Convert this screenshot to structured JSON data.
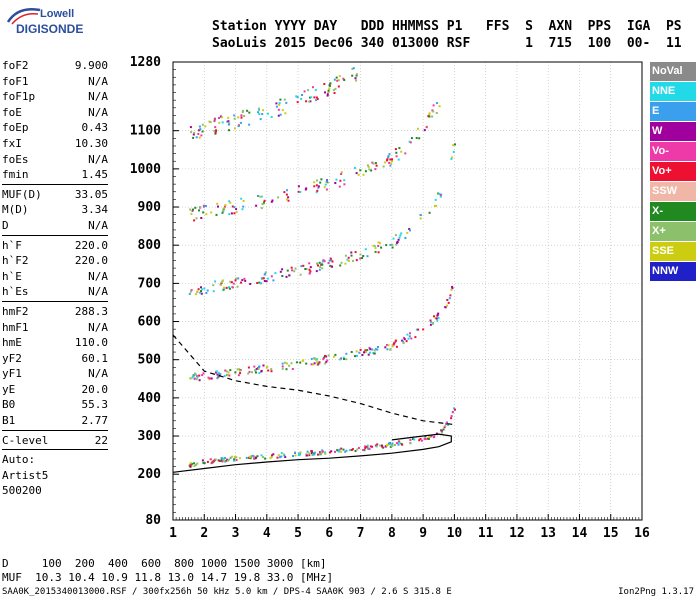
{
  "logo": {
    "line1": "Lowell",
    "line2": "DIGISONDE"
  },
  "header": {
    "line1": "Station YYYY DAY   DDD HHMMSS P1   FFS  S  AXN  PPS  IGA  PS",
    "line2": "SaoLuis 2015 Dec06 340 013000 RSF       1  715  100  00-  11"
  },
  "params_group1": [
    {
      "k": "foF2",
      "v": "9.900"
    },
    {
      "k": "foF1",
      "v": "N/A"
    },
    {
      "k": "foF1p",
      "v": "N/A"
    },
    {
      "k": "foE",
      "v": "N/A"
    },
    {
      "k": "foEp",
      "v": "0.43"
    },
    {
      "k": "fxI",
      "v": "10.30"
    },
    {
      "k": "foEs",
      "v": "N/A"
    },
    {
      "k": "fmin",
      "v": "1.45"
    }
  ],
  "params_group2": [
    {
      "k": "MUF(D)",
      "v": "33.05"
    },
    {
      "k": "M(D)",
      "v": "3.34"
    },
    {
      "k": "D",
      "v": "N/A"
    }
  ],
  "params_group3": [
    {
      "k": "h`F",
      "v": "220.0"
    },
    {
      "k": "h`F2",
      "v": "220.0"
    },
    {
      "k": "h`E",
      "v": "N/A"
    },
    {
      "k": "h`Es",
      "v": "N/A"
    }
  ],
  "params_group4": [
    {
      "k": "hmF2",
      "v": "288.3"
    },
    {
      "k": "hmF1",
      "v": "N/A"
    },
    {
      "k": "hmE",
      "v": "110.0"
    },
    {
      "k": "yF2",
      "v": "60.1"
    },
    {
      "k": "yF1",
      "v": "N/A"
    },
    {
      "k": "yE",
      "v": "20.0"
    },
    {
      "k": "B0",
      "v": "55.3"
    },
    {
      "k": "B1",
      "v": "2.77"
    }
  ],
  "params_group5": [
    {
      "k": "C-level",
      "v": "22"
    }
  ],
  "params_group6": [
    {
      "k": "Auto:",
      "v": ""
    },
    {
      "k": "Artist5",
      "v": ""
    },
    {
      "k": "500200",
      "v": ""
    }
  ],
  "legend": [
    {
      "label": "NoVal",
      "color": "#8a8a8a"
    },
    {
      "label": "NNE",
      "color": "#22d9e8"
    },
    {
      "label": "E",
      "color": "#3aa0ee"
    },
    {
      "label": "W",
      "color": "#a0009e"
    },
    {
      "label": "Vo-",
      "color": "#ee3aa8"
    },
    {
      "label": "Vo+",
      "color": "#ee1030"
    },
    {
      "label": "SSW",
      "color": "#f0b6a8"
    },
    {
      "label": "X-",
      "color": "#208a20"
    },
    {
      "label": "X+",
      "color": "#8cc06a"
    },
    {
      "label": "SSE",
      "color": "#cccc10"
    },
    {
      "label": "NNW",
      "color": "#2020c8"
    }
  ],
  "footer": {
    "line1": "D     100  200  400  600  800 1000 1500 3000 [km]",
    "line2": "MUF  10.3 10.4 10.9 11.8 13.0 14.7 19.8 33.0 [MHz]"
  },
  "bottom_line": "SAA0K_2015340013000.RSF / 300fx256h 50 kHz 5.0 km / DPS-4 SAA0K 903 / 2.6 S 315.8 E",
  "version": "Ion2Png 1.3.17",
  "chart_data": {
    "type": "scatter",
    "title": "",
    "xlabel": "",
    "ylabel": "",
    "xlim": [
      1,
      16
    ],
    "ylim": [
      80,
      1280
    ],
    "x_ticks": [
      "1",
      "2",
      "3",
      "4",
      "5",
      "6",
      "7",
      "8",
      "9",
      "10",
      "11",
      "12",
      "13",
      "14",
      "15",
      "16"
    ],
    "y_ticks": [
      "80",
      "200",
      "300",
      "400",
      "500",
      "600",
      "700",
      "800",
      "900",
      "1000",
      "1100",
      "1280"
    ],
    "series": [
      {
        "name": "1st hop",
        "x": [
          1.5,
          2,
          3,
          4,
          5,
          6,
          7,
          8,
          8.5,
          9,
          9.5,
          9.8,
          10
        ],
        "y": [
          225,
          235,
          245,
          250,
          255,
          262,
          270,
          280,
          287,
          295,
          310,
          340,
          380
        ]
      },
      {
        "name": "2nd hop",
        "x": [
          1.5,
          2,
          3,
          4,
          5,
          6,
          7,
          8,
          8.5,
          9,
          9.5,
          9.8,
          10
        ],
        "y": [
          455,
          460,
          470,
          480,
          490,
          505,
          520,
          540,
          560,
          585,
          620,
          660,
          720
        ]
      },
      {
        "name": "3rd hop",
        "x": [
          1.5,
          2,
          3,
          4,
          5,
          6,
          7,
          8,
          8.5,
          9,
          9.5,
          9.8,
          10
        ],
        "y": [
          680,
          690,
          705,
          720,
          735,
          755,
          780,
          810,
          840,
          880,
          930,
          1000,
          1080
        ]
      },
      {
        "name": "4th hop",
        "x": [
          1.5,
          2,
          3,
          4,
          5,
          6,
          7,
          8,
          8.5,
          9,
          9.5
        ],
        "y": [
          880,
          890,
          905,
          920,
          940,
          965,
          995,
          1030,
          1065,
          1110,
          1180
        ]
      },
      {
        "name": "5th hop",
        "x": [
          1.5,
          2,
          3,
          4,
          5,
          6,
          7
        ],
        "y": [
          1095,
          1110,
          1130,
          1150,
          1180,
          1215,
          1260
        ]
      }
    ],
    "profile_line": {
      "x": [
        1,
        2,
        3,
        4,
        5,
        6,
        7,
        8,
        9,
        9.5,
        9.9,
        9.9,
        9.5,
        9,
        8
      ],
      "y": [
        205,
        215,
        225,
        232,
        238,
        242,
        248,
        255,
        265,
        272,
        285,
        300,
        305,
        300,
        290
      ]
    },
    "dashed_line": {
      "x": [
        1,
        2,
        3,
        4,
        5,
        6,
        7,
        8,
        9,
        10
      ],
      "y": [
        565,
        470,
        445,
        430,
        420,
        405,
        385,
        360,
        340,
        330
      ]
    }
  }
}
